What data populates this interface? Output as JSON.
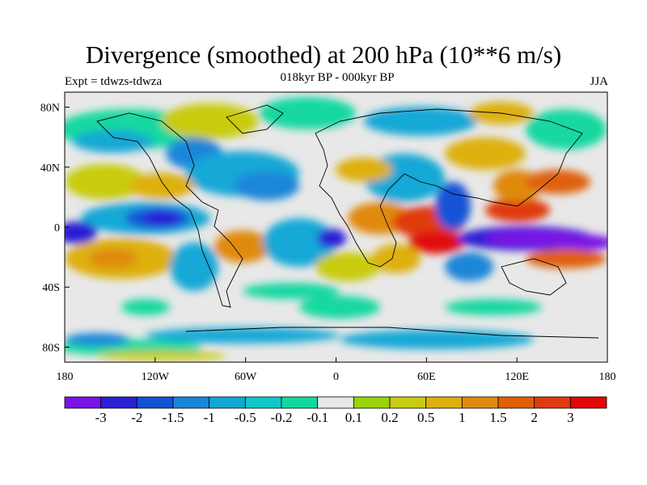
{
  "title": "Divergence (smoothed) at 200 hPa (10**6 m/s)",
  "subtitle": "018kyr BP - 000kyr BP",
  "left_label": "Expt = tdwzs-tdwza",
  "right_label": "JJA",
  "axes": {
    "lat_ticks": [
      "80N",
      "40N",
      "0",
      "40S",
      "80S"
    ],
    "lat_values": [
      80,
      40,
      0,
      -40,
      -80
    ],
    "lon_ticks": [
      "180",
      "120W",
      "60W",
      "0",
      "60E",
      "120E",
      "180"
    ],
    "lon_values": [
      -180,
      -120,
      -60,
      0,
      60,
      120,
      180
    ]
  },
  "colorbar": {
    "labels": [
      "-3",
      "-2",
      "-1.5",
      "-1",
      "-0.5",
      "-0.2",
      "-0.1",
      "0.1",
      "0.2",
      "0.5",
      "1",
      "1.5",
      "2",
      "3"
    ],
    "colors": [
      "#7a14e6",
      "#2b1fd6",
      "#1452d6",
      "#1a86d9",
      "#12a8d6",
      "#10c8c8",
      "#12d8a0",
      "#e8e8e8",
      "#9ad40a",
      "#c8cc10",
      "#ddb010",
      "#e08a10",
      "#e06008",
      "#e03a10",
      "#e00808"
    ]
  },
  "field": {
    "level_colors": {
      "strong_neg": "#7a14e6",
      "neg2": "#2b1fd6",
      "neg15": "#1452d6",
      "neg1": "#1a86d9",
      "neg05": "#12a8d6",
      "neg02": "#10c8c8",
      "neg01": "#12d8a0",
      "zero": "#e8e8e8",
      "pos01": "#9ad40a",
      "pos02": "#c8cc10",
      "pos05": "#ddb010",
      "pos1": "#e08a10",
      "pos15": "#e06008",
      "pos2": "#e03a10",
      "pos3": "#e00808"
    }
  }
}
